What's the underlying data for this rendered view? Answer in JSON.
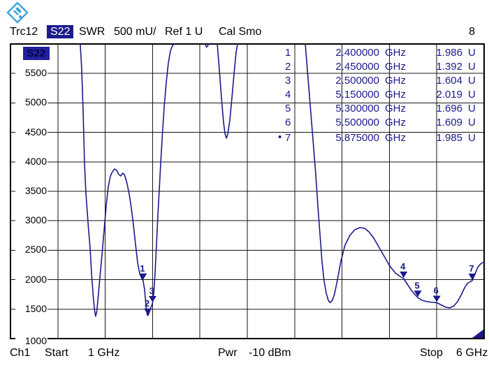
{
  "header": {
    "trace_label": "Trc12",
    "trace_param": "S22",
    "format": "SWR",
    "scale": "500 mU/",
    "ref": "Ref 1 U",
    "cal": "Cal Smo",
    "window_number": "8"
  },
  "diagram": {
    "trace_badge": "S22",
    "y_labels": [
      "5500",
      "5000",
      "4500",
      "4000",
      "3500",
      "3000",
      "2500",
      "2000",
      "1500",
      "1000"
    ]
  },
  "marker_table": {
    "active_indicator": "•",
    "rows": [
      {
        "n": "1",
        "freq": "2.400000",
        "funit": "GHz",
        "value": "1.986",
        "vunit": "U",
        "active": false
      },
      {
        "n": "2",
        "freq": "2.450000",
        "funit": "GHz",
        "value": "1.392",
        "vunit": "U",
        "active": false
      },
      {
        "n": "3",
        "freq": "2.500000",
        "funit": "GHz",
        "value": "1.604",
        "vunit": "U",
        "active": false
      },
      {
        "n": "4",
        "freq": "5.150000",
        "funit": "GHz",
        "value": "2.019",
        "vunit": "U",
        "active": false
      },
      {
        "n": "5",
        "freq": "5.300000",
        "funit": "GHz",
        "value": "1.696",
        "vunit": "U",
        "active": false
      },
      {
        "n": "6",
        "freq": "5.500000",
        "funit": "GHz",
        "value": "1.609",
        "vunit": "U",
        "active": false
      },
      {
        "n": "7",
        "freq": "5.875000",
        "funit": "GHz",
        "value": "1.985",
        "vunit": "U",
        "active": true
      }
    ]
  },
  "footer": {
    "channel": "Ch1",
    "start_label": "Start",
    "start_value": "1 GHz",
    "power_label": "Pwr",
    "power_value": "-10 dBm",
    "stop_label": "Stop",
    "stop_value": "6 GHz"
  },
  "colors": {
    "trace": "#1a1a8c",
    "grid": "#161616",
    "logo_blue": "#3aa6d8",
    "chip_bg": "#1a1a8c",
    "chip_text": "#ffffff"
  },
  "chart_data": {
    "type": "line",
    "title": "S22 SWR vs frequency",
    "xlabel": "Frequency (GHz), sweep 1 GHz to 6 GHz",
    "ylabel": "SWR (mU), 500 mU/div, Ref 1 U",
    "x_range_ghz": [
      1,
      6
    ],
    "y_range_mu": [
      1000,
      6000
    ],
    "x_gridlines_ghz": [
      1,
      1.5,
      2,
      2.5,
      3,
      3.5,
      4,
      4.5,
      5,
      5.5,
      6
    ],
    "y_gridlines_mu": [
      1000,
      1500,
      2000,
      2500,
      3000,
      3500,
      4000,
      4500,
      5000,
      5500,
      6000
    ],
    "grid": true,
    "trace_color": "#1a1a8c",
    "segments": [
      [
        [
          1.737,
          6000
        ],
        [
          1.752,
          5562
        ],
        [
          1.767,
          4851
        ],
        [
          1.782,
          3963
        ],
        [
          1.796,
          3489
        ],
        [
          1.811,
          3133
        ],
        [
          1.826,
          2813
        ],
        [
          1.841,
          2540
        ],
        [
          1.855,
          2126
        ],
        [
          1.874,
          1711
        ],
        [
          1.889,
          1474
        ],
        [
          1.898,
          1379
        ],
        [
          1.911,
          1450
        ],
        [
          1.929,
          1770
        ],
        [
          1.948,
          2102
        ],
        [
          1.966,
          2422
        ],
        [
          1.988,
          2837
        ],
        [
          2.01,
          3251
        ],
        [
          2.032,
          3571
        ],
        [
          2.055,
          3761
        ],
        [
          2.077,
          3832
        ],
        [
          2.099,
          3879
        ],
        [
          2.121,
          3855
        ],
        [
          2.143,
          3784
        ],
        [
          2.165,
          3761
        ],
        [
          2.184,
          3808
        ],
        [
          2.202,
          3784
        ],
        [
          2.217,
          3713
        ],
        [
          2.231,
          3630
        ],
        [
          2.254,
          3452
        ],
        [
          2.276,
          3215
        ],
        [
          2.298,
          2931
        ],
        [
          2.32,
          2599
        ],
        [
          2.342,
          2291
        ],
        [
          2.364,
          2102
        ],
        [
          2.383,
          2031
        ],
        [
          2.4,
          1986
        ],
        [
          2.416,
          1829
        ],
        [
          2.431,
          1557
        ],
        [
          2.444,
          1403
        ],
        [
          2.45,
          1392
        ],
        [
          2.464,
          1438
        ],
        [
          2.479,
          1509
        ],
        [
          2.5,
          1604
        ],
        [
          2.512,
          1758
        ],
        [
          2.523,
          2007
        ],
        [
          2.534,
          2363
        ],
        [
          2.545,
          2718
        ],
        [
          2.556,
          3097
        ],
        [
          2.571,
          3524
        ],
        [
          2.586,
          3998
        ],
        [
          2.604,
          4472
        ],
        [
          2.622,
          4910
        ],
        [
          2.645,
          5360
        ],
        [
          2.667,
          5680
        ],
        [
          2.689,
          5882
        ],
        [
          2.711,
          5976
        ],
        [
          2.729,
          6000
        ]
      ],
      [
        [
          3.05,
          6000
        ],
        [
          3.072,
          5947
        ],
        [
          3.094,
          6000
        ]
      ],
      [
        [
          3.183,
          6000
        ],
        [
          3.205,
          5562
        ],
        [
          3.227,
          5088
        ],
        [
          3.249,
          4673
        ],
        [
          3.264,
          4484
        ],
        [
          3.279,
          4400
        ],
        [
          3.293,
          4460
        ],
        [
          3.316,
          4708
        ],
        [
          3.338,
          5088
        ],
        [
          3.36,
          5491
        ],
        [
          3.382,
          5858
        ],
        [
          3.397,
          6000
        ]
      ],
      [
        [
          4.112,
          6000
        ],
        [
          4.134,
          5562
        ],
        [
          4.164,
          4970
        ],
        [
          4.193,
          4377
        ],
        [
          4.223,
          3784
        ],
        [
          4.245,
          3251
        ],
        [
          4.267,
          2777
        ],
        [
          4.289,
          2303
        ],
        [
          4.311,
          1972
        ],
        [
          4.333,
          1770
        ],
        [
          4.355,
          1652
        ],
        [
          4.373,
          1610
        ],
        [
          4.399,
          1652
        ],
        [
          4.421,
          1758
        ],
        [
          4.451,
          1995
        ],
        [
          4.488,
          2315
        ],
        [
          4.532,
          2588
        ],
        [
          4.584,
          2754
        ],
        [
          4.635,
          2848
        ],
        [
          4.687,
          2884
        ],
        [
          4.739,
          2872
        ],
        [
          4.783,
          2813
        ],
        [
          4.835,
          2706
        ],
        [
          4.886,
          2564
        ],
        [
          4.945,
          2398
        ],
        [
          5.004,
          2232
        ],
        [
          5.063,
          2114
        ],
        [
          5.107,
          2060
        ],
        [
          5.15,
          2019
        ],
        [
          5.189,
          1924
        ],
        [
          5.233,
          1818
        ],
        [
          5.27,
          1747
        ],
        [
          5.3,
          1696
        ],
        [
          5.343,
          1652
        ],
        [
          5.395,
          1628
        ],
        [
          5.447,
          1616
        ],
        [
          5.5,
          1609
        ],
        [
          5.55,
          1569
        ],
        [
          5.594,
          1533
        ],
        [
          5.639,
          1521
        ],
        [
          5.683,
          1557
        ],
        [
          5.72,
          1628
        ],
        [
          5.757,
          1735
        ],
        [
          5.794,
          1865
        ],
        [
          5.823,
          1936
        ],
        [
          5.853,
          1966
        ],
        [
          5.875,
          1985
        ],
        [
          5.904,
          2102
        ],
        [
          5.933,
          2209
        ],
        [
          5.963,
          2268
        ],
        [
          5.985,
          2291
        ],
        [
          6.0,
          2297
        ]
      ]
    ],
    "markers": [
      {
        "n": "1",
        "freq_ghz": 2.4,
        "value_mu": 1986
      },
      {
        "n": "2",
        "freq_ghz": 2.45,
        "value_mu": 1392
      },
      {
        "n": "3",
        "freq_ghz": 2.5,
        "value_mu": 1604
      },
      {
        "n": "4",
        "freq_ghz": 5.15,
        "value_mu": 2019
      },
      {
        "n": "5",
        "freq_ghz": 5.3,
        "value_mu": 1696
      },
      {
        "n": "6",
        "freq_ghz": 5.5,
        "value_mu": 1609
      },
      {
        "n": "7",
        "freq_ghz": 5.875,
        "value_mu": 1985,
        "active": true
      }
    ],
    "legend_position": "top-left"
  }
}
